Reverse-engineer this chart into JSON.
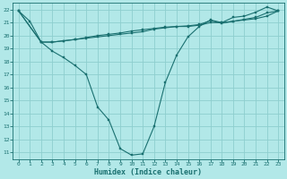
{
  "xlabel": "Humidex (Indice chaleur)",
  "background_color": "#b2e8e8",
  "grid_color": "#8ecece",
  "line_color": "#1a7070",
  "xlim": [
    -0.5,
    23.5
  ],
  "ylim": [
    10.5,
    22.5
  ],
  "xticks": [
    0,
    1,
    2,
    3,
    4,
    5,
    6,
    7,
    8,
    9,
    10,
    11,
    12,
    13,
    14,
    15,
    16,
    17,
    18,
    19,
    20,
    21,
    22,
    23
  ],
  "yticks": [
    11,
    12,
    13,
    14,
    15,
    16,
    17,
    18,
    19,
    20,
    21,
    22
  ],
  "curve1_x": [
    0,
    1,
    2,
    3,
    4,
    5,
    6,
    7,
    8,
    9,
    10,
    11,
    12,
    13,
    14,
    15,
    16,
    17,
    18,
    19,
    20,
    21,
    22,
    23
  ],
  "curve1_y": [
    21.9,
    21.1,
    19.5,
    18.8,
    18.3,
    17.7,
    17.0,
    14.5,
    13.5,
    11.3,
    10.8,
    10.9,
    13.0,
    16.4,
    18.5,
    19.9,
    20.7,
    21.2,
    21.0,
    21.4,
    21.5,
    21.8,
    22.2,
    21.9
  ],
  "curve2_x": [
    0,
    2,
    3,
    4,
    5,
    6,
    7,
    8,
    9,
    10,
    11,
    12,
    13,
    14,
    15,
    16,
    17,
    18,
    19,
    20,
    21,
    22,
    23
  ],
  "curve2_y": [
    21.9,
    19.5,
    19.5,
    19.6,
    19.7,
    19.8,
    19.9,
    20.0,
    20.1,
    20.2,
    20.3,
    20.5,
    20.6,
    20.7,
    20.7,
    20.8,
    21.0,
    21.0,
    21.1,
    21.2,
    21.3,
    21.5,
    21.9
  ],
  "curve3_x": [
    0,
    2,
    3,
    4,
    5,
    6,
    7,
    8,
    9,
    10,
    11,
    12,
    13,
    14,
    15,
    16,
    17,
    18,
    19,
    20,
    21,
    22,
    23
  ],
  "curve3_y": [
    21.9,
    19.5,
    19.5,
    19.6,
    19.7,
    19.85,
    20.0,
    20.1,
    20.2,
    20.35,
    20.45,
    20.55,
    20.65,
    20.7,
    20.75,
    20.85,
    21.15,
    20.95,
    21.1,
    21.25,
    21.4,
    21.75,
    21.9
  ]
}
